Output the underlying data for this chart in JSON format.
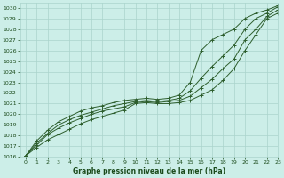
{
  "title": "Graphe pression niveau de la mer (hPa)",
  "bg_color": "#cceee8",
  "grid_color": "#aad4cc",
  "line_color": "#2d5e2d",
  "text_color": "#1a4a1a",
  "xlim": [
    -0.5,
    23
  ],
  "ylim": [
    1016,
    1030.5
  ],
  "xticks": [
    0,
    1,
    2,
    3,
    4,
    5,
    6,
    7,
    8,
    9,
    10,
    11,
    12,
    13,
    14,
    15,
    16,
    17,
    18,
    19,
    20,
    21,
    22,
    23
  ],
  "yticks": [
    1016,
    1017,
    1018,
    1019,
    1020,
    1021,
    1022,
    1023,
    1024,
    1025,
    1026,
    1027,
    1028,
    1029,
    1030
  ],
  "series": [
    [
      1016.1,
      1016.9,
      1017.6,
      1018.1,
      1018.6,
      1019.1,
      1019.5,
      1019.8,
      1020.1,
      1020.4,
      1021.0,
      1021.1,
      1021.0,
      1021.0,
      1021.1,
      1021.3,
      1021.8,
      1022.3,
      1023.2,
      1024.3,
      1026.0,
      1027.5,
      1029.0,
      1029.5
    ],
    [
      1016.1,
      1017.1,
      1018.1,
      1018.7,
      1019.2,
      1019.6,
      1020.0,
      1020.3,
      1020.5,
      1020.7,
      1021.1,
      1021.2,
      1021.1,
      1021.2,
      1021.3,
      1021.7,
      1022.5,
      1023.3,
      1024.3,
      1025.2,
      1027.0,
      1028.0,
      1029.2,
      1029.8
    ],
    [
      1016.1,
      1017.3,
      1018.2,
      1019.0,
      1019.5,
      1019.9,
      1020.2,
      1020.5,
      1020.8,
      1021.0,
      1021.2,
      1021.3,
      1021.2,
      1021.3,
      1021.5,
      1022.2,
      1023.4,
      1024.5,
      1025.5,
      1026.5,
      1028.0,
      1029.0,
      1029.5,
      1030.1
    ],
    [
      1016.1,
      1017.5,
      1018.5,
      1019.3,
      1019.8,
      1020.3,
      1020.6,
      1020.8,
      1021.1,
      1021.3,
      1021.4,
      1021.5,
      1021.4,
      1021.5,
      1021.8,
      1023.0,
      1026.0,
      1027.0,
      1027.5,
      1028.0,
      1029.0,
      1029.5,
      1029.8,
      1030.2
    ]
  ],
  "marker": "+"
}
